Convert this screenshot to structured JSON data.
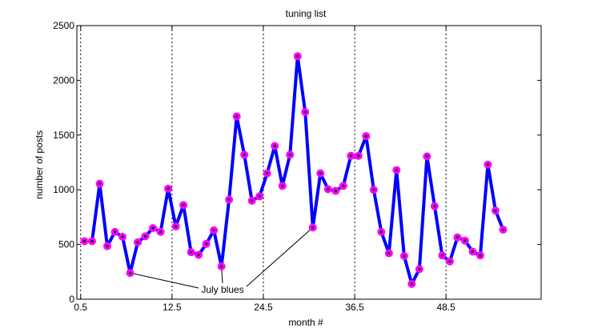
{
  "chart_data": {
    "type": "line",
    "title": "tuning list",
    "xlabel": "month #",
    "ylabel": "number of posts",
    "xlim": [
      0,
      61
    ],
    "ylim": [
      0,
      2500
    ],
    "xticks": [
      0.5,
      12.5,
      24.5,
      36.5,
      48.5
    ],
    "xtick_labels": [
      "0.5",
      "12.5",
      "24.5",
      "36.5",
      "48.5"
    ],
    "yticks": [
      0,
      500,
      1000,
      1500,
      2000,
      2500
    ],
    "ytick_labels": [
      "0",
      "500",
      "1000",
      "1500",
      "2000",
      "2500"
    ],
    "vlines": [
      0.5,
      12.5,
      24.5,
      36.5,
      48.5
    ],
    "grid": false,
    "series": [
      {
        "color": "#0000ff",
        "marker_color": "#ff00ff",
        "x": [
          1,
          2,
          3,
          4,
          5,
          6,
          7,
          8,
          9,
          10,
          11,
          12,
          13,
          14,
          15,
          16,
          17,
          18,
          19,
          20,
          21,
          22,
          23,
          24,
          25,
          26,
          27,
          28,
          29,
          30,
          31,
          32,
          33,
          34,
          35,
          36,
          37,
          38,
          39,
          40,
          41,
          42,
          43,
          44,
          45,
          46,
          47,
          48,
          49,
          50,
          51,
          52,
          53,
          54,
          55,
          56
        ],
        "y": [
          530,
          530,
          1055,
          485,
          615,
          570,
          240,
          520,
          575,
          650,
          615,
          1010,
          665,
          860,
          430,
          405,
          505,
          630,
          300,
          910,
          1670,
          1320,
          900,
          940,
          1150,
          1400,
          1035,
          1320,
          2220,
          1710,
          655,
          1150,
          1005,
          990,
          1035,
          1310,
          1310,
          1490,
          1000,
          615,
          420,
          1180,
          395,
          140,
          275,
          1305,
          850,
          400,
          345,
          565,
          535,
          435,
          400,
          1230,
          810,
          635
        ]
      }
    ],
    "annotation": {
      "text": "July blues",
      "points": [
        [
          7,
          240
        ],
        [
          19,
          300
        ],
        [
          31,
          655
        ]
      ]
    }
  }
}
